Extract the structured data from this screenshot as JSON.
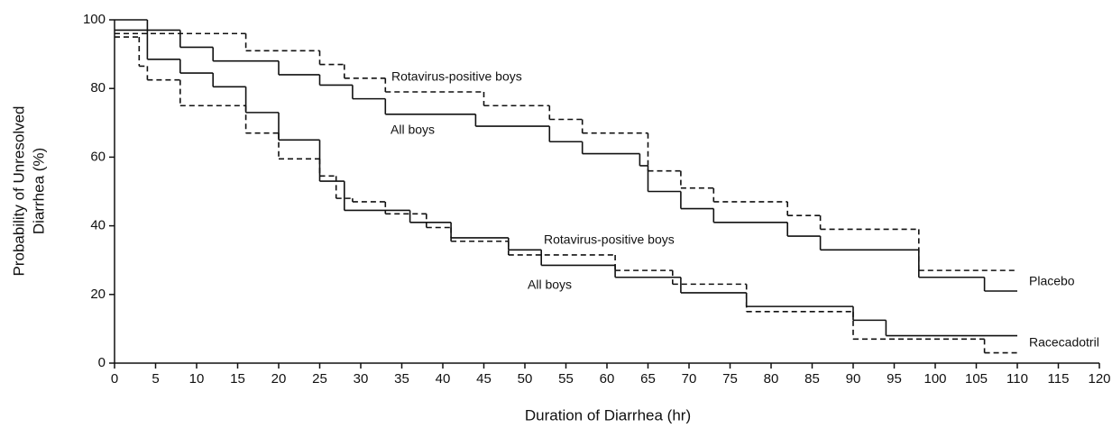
{
  "chart_data": {
    "type": "line",
    "drawstyle": "steps-post",
    "xlabel": "Duration of Diarrhea (hr)",
    "ylabel": [
      "Probability of Unresolved",
      "Diarrhea (%)"
    ],
    "xlim": [
      0,
      120
    ],
    "ylim": [
      0,
      100
    ],
    "xticks": [
      0,
      5,
      10,
      15,
      20,
      25,
      30,
      35,
      40,
      45,
      50,
      55,
      60,
      65,
      70,
      75,
      80,
      85,
      90,
      95,
      100,
      105,
      110,
      115,
      120
    ],
    "yticks": [
      0,
      20,
      40,
      60,
      80,
      100
    ],
    "grid": false,
    "series": [
      {
        "color": "#111111",
        "dashed": false,
        "x": [
          0,
          8,
          12,
          20,
          25,
          29,
          33,
          44,
          53,
          57,
          64,
          65,
          69,
          73,
          82,
          86,
          98,
          106,
          110
        ],
        "values": [
          97,
          92,
          88,
          84,
          81,
          77,
          72.5,
          69,
          64.5,
          61,
          57.5,
          50,
          45,
          41,
          37,
          33,
          25,
          21,
          21
        ]
      },
      {
        "color": "#111111",
        "dashed": true,
        "x": [
          0,
          16,
          25,
          28,
          33,
          45,
          53,
          57,
          65,
          69,
          73,
          82,
          86,
          98,
          110
        ],
        "values": [
          96,
          91,
          87,
          83,
          79,
          75,
          71,
          67,
          56,
          51,
          47,
          43,
          39,
          27,
          27
        ]
      },
      {
        "color": "#111111",
        "dashed": false,
        "x": [
          0,
          4,
          8,
          12,
          16,
          20,
          25,
          28,
          36,
          41,
          48,
          52,
          61,
          69,
          77,
          90,
          94,
          110
        ],
        "values": [
          100,
          88.5,
          84.5,
          80.5,
          73,
          65,
          53,
          44.5,
          41,
          36.5,
          33,
          28.5,
          25,
          20.5,
          16.5,
          12.5,
          8,
          8
        ]
      },
      {
        "color": "#111111",
        "dashed": true,
        "x": [
          0,
          3,
          4,
          8,
          16,
          20,
          25,
          27,
          29,
          33,
          38,
          41,
          48,
          61,
          68,
          77,
          90,
          106,
          110
        ],
        "values": [
          95,
          86.5,
          82.5,
          75,
          67,
          59.5,
          54.5,
          48,
          47,
          43.5,
          39.5,
          35.5,
          31.5,
          27,
          23,
          15,
          7,
          3,
          3
        ]
      }
    ],
    "annotations": [
      "Rotavirus-positive boys",
      "All boys",
      "Rotavirus-positive boys",
      "All boys",
      "Placebo",
      "Racecadotril"
    ]
  }
}
